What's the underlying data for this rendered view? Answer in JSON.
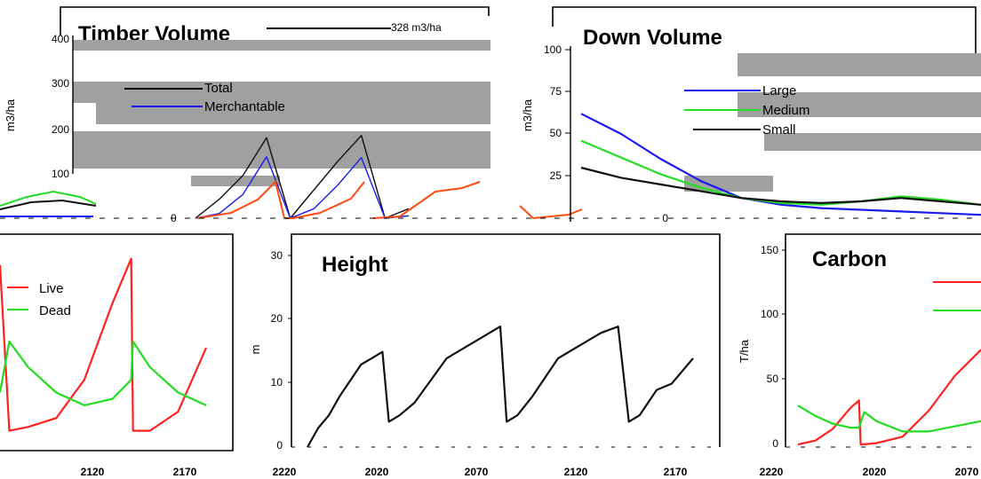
{
  "colors": {
    "red": "#ff2020",
    "green": "#22dd22",
    "blue": "#1a1aee",
    "black": "#111111",
    "orange": "#ff4a10",
    "grey": "#a0a0a0"
  },
  "chart_data": [
    {
      "id": "timber",
      "type": "line",
      "title": "Timber Volume",
      "ylabel": "m3/ha",
      "annotation": "328 m3/ha",
      "yticks": [
        "100",
        "200",
        "300",
        "400"
      ],
      "legend": [
        "Total",
        "Merchantable"
      ],
      "series": [
        {
          "name": "Total",
          "color": "black",
          "x": [
            0,
            1,
            2,
            3,
            4,
            5,
            6,
            7,
            8,
            9
          ],
          "y": [
            0,
            40,
            90,
            170,
            0,
            60,
            120,
            175,
            0,
            20
          ]
        },
        {
          "name": "Merchantable",
          "color": "blue",
          "x": [
            0,
            1,
            2,
            3,
            4,
            5,
            6,
            7,
            8,
            9
          ],
          "y": [
            0,
            10,
            50,
            130,
            0,
            20,
            70,
            128,
            0,
            5
          ]
        }
      ]
    },
    {
      "id": "down",
      "type": "line",
      "title": "Down Volume",
      "ylabel": "m3/ha",
      "yticks": [
        "0",
        "25",
        "50",
        "75",
        "100"
      ],
      "ylim": [
        0,
        100
      ],
      "legend": [
        "Large",
        "Medium",
        "Small"
      ],
      "series": [
        {
          "name": "Large",
          "color": "blue",
          "x": [
            0,
            10,
            20,
            30,
            40,
            50,
            60,
            70,
            80,
            90,
            100
          ],
          "y": [
            62,
            50,
            35,
            22,
            12,
            8,
            6,
            5,
            4,
            3,
            2
          ]
        },
        {
          "name": "Medium",
          "color": "green",
          "x": [
            0,
            10,
            20,
            30,
            40,
            50,
            60,
            70,
            80,
            90,
            100
          ],
          "y": [
            46,
            36,
            26,
            18,
            12,
            9,
            8,
            10,
            13,
            11,
            8
          ]
        },
        {
          "name": "Small",
          "color": "black",
          "x": [
            0,
            10,
            20,
            30,
            40,
            50,
            60,
            70,
            80,
            90,
            100
          ],
          "y": [
            30,
            24,
            20,
            16,
            12,
            10,
            9,
            10,
            12,
            10,
            8
          ]
        }
      ]
    },
    {
      "id": "snags",
      "type": "line",
      "title": "",
      "xticks": [
        "2120",
        "2170",
        "2220"
      ],
      "legend": [
        "Live",
        "Dead"
      ],
      "series": [
        {
          "name": "Live",
          "color": "red",
          "x": [
            2070,
            2075,
            2085,
            2100,
            2115,
            2130,
            2140,
            2141,
            2150,
            2165,
            2180
          ],
          "y": [
            14,
            1,
            1.3,
            2,
            5,
            11,
            14.5,
            1,
            1,
            2.5,
            7.5
          ]
        },
        {
          "name": "Dead",
          "color": "green",
          "x": [
            2070,
            2075,
            2085,
            2100,
            2115,
            2130,
            2140,
            2141,
            2150,
            2165,
            2180
          ],
          "y": [
            4,
            8,
            6,
            4,
            3,
            3.5,
            5,
            8,
            6,
            4,
            3
          ]
        }
      ]
    },
    {
      "id": "height",
      "type": "line",
      "title": "Height",
      "ylabel": "m",
      "xticks": [
        "2020",
        "2070",
        "2120",
        "2170",
        "2220"
      ],
      "yticks": [
        "0",
        "10",
        "20",
        "30"
      ],
      "ylim": [
        0,
        33
      ],
      "series": [
        {
          "name": "",
          "color": "black",
          "x": [
            1995,
            2000,
            2005,
            2010,
            2020,
            2025,
            2030,
            2033,
            2038,
            2045,
            2060,
            2070,
            2085,
            2088,
            2093,
            2100,
            2112,
            2122,
            2132,
            2140,
            2145,
            2150,
            2158,
            2165,
            2175
          ],
          "y": [
            0,
            3,
            5,
            8,
            13,
            14,
            15,
            4,
            5,
            7,
            14,
            16,
            19,
            4,
            5,
            8,
            14,
            16,
            18,
            19,
            4,
            5,
            9,
            10,
            14
          ]
        }
      ]
    },
    {
      "id": "carbon",
      "type": "line",
      "title": "Carbon",
      "ylabel": "T/ha",
      "xticks": [
        "2020",
        "2070"
      ],
      "yticks": [
        "0",
        "50",
        "100",
        "150"
      ],
      "ylim": [
        0,
        160
      ],
      "series": [
        {
          "name": "",
          "color": "red",
          "x": [
            1985,
            1995,
            2005,
            2015,
            2020,
            2021,
            2030,
            2045,
            2060,
            2075,
            2090
          ],
          "y": [
            2,
            5,
            14,
            30,
            36,
            2,
            3,
            8,
            28,
            55,
            75
          ]
        },
        {
          "name": "",
          "color": "green",
          "x": [
            1985,
            1995,
            2005,
            2015,
            2020,
            2023,
            2030,
            2045,
            2060,
            2075,
            2090
          ],
          "y": [
            32,
            24,
            18,
            15,
            15,
            27,
            20,
            12,
            12,
            16,
            20
          ]
        }
      ]
    }
  ]
}
